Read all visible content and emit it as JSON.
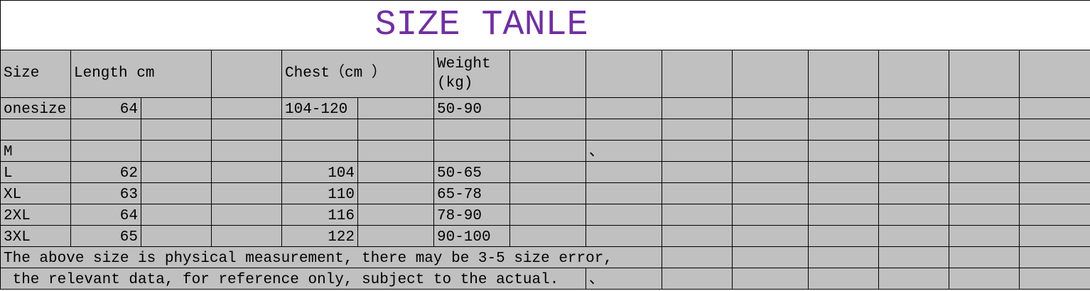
{
  "title": {
    "text": "SIZE TANLE",
    "color": "#7030A0"
  },
  "header": {
    "size": "Size",
    "length": "Length cm",
    "chest": "Chest（cm ）",
    "weight": "Weight (kg)"
  },
  "rows": [
    {
      "size": "onesize",
      "length": "64",
      "chest": "104-120",
      "chest_align": "left",
      "weight": "50-90",
      "mark": ""
    },
    {
      "size": "",
      "length": "",
      "chest": "",
      "chest_align": "right",
      "weight": "",
      "mark": ""
    },
    {
      "size": "M",
      "length": "",
      "chest": "",
      "chest_align": "right",
      "weight": "",
      "mark": "、"
    },
    {
      "size": "L",
      "length": "62",
      "chest": "104",
      "chest_align": "right",
      "weight": "50-65",
      "mark": ""
    },
    {
      "size": "XL",
      "length": "63",
      "chest": "110",
      "chest_align": "right",
      "weight": "65-78",
      "mark": ""
    },
    {
      "size": "2XL",
      "length": "64",
      "chest": "116",
      "chest_align": "right",
      "weight": "78-90",
      "mark": ""
    },
    {
      "size": "3XL",
      "length": "65",
      "chest": "122",
      "chest_align": "right",
      "weight": "90-100",
      "mark": ""
    }
  ],
  "notes": {
    "line1": "The above size is physical measurement, there may be 3-5 size error,",
    "line2": " the relevant data, for reference only, subject to the actual.",
    "line2_mark": "、"
  },
  "colors": {
    "cell_bg": "#c0c0c0",
    "border": "#000000"
  }
}
